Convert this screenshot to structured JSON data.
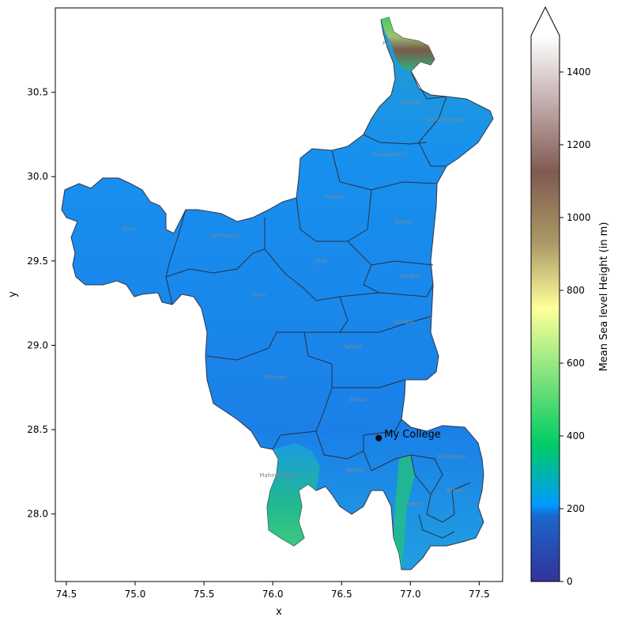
{
  "map": {
    "xlabel": "x",
    "ylabel": "y",
    "x_ticks": [
      "74.5",
      "75.0",
      "75.5",
      "76.0",
      "76.5",
      "77.0",
      "77.5"
    ],
    "y_ticks": [
      "28.0",
      "28.5",
      "29.0",
      "29.5",
      "30.0",
      "30.5"
    ],
    "xlim": [
      74.42,
      77.67
    ],
    "ylim": [
      27.6,
      31.0
    ],
    "marker": {
      "label": "My College",
      "lon": 76.77,
      "lat": 28.45,
      "color": "#000000"
    },
    "district_labels": [
      {
        "name": "Panchkula",
        "lon": 76.9,
        "lat": 30.78
      },
      {
        "name": "Ambala",
        "lon": 77.0,
        "lat": 30.43
      },
      {
        "name": "Yamunanagar",
        "lon": 77.25,
        "lat": 30.33
      },
      {
        "name": "Kurukshetra",
        "lon": 76.85,
        "lat": 30.12
      },
      {
        "name": "Kaithal",
        "lon": 76.45,
        "lat": 29.87
      },
      {
        "name": "Karnal",
        "lon": 76.95,
        "lat": 29.72
      },
      {
        "name": "Sirsa",
        "lon": 74.95,
        "lat": 29.68
      },
      {
        "name": "Fatehabad",
        "lon": 75.65,
        "lat": 29.64
      },
      {
        "name": "Jind",
        "lon": 76.35,
        "lat": 29.49
      },
      {
        "name": "Panipat",
        "lon": 77.0,
        "lat": 29.4
      },
      {
        "name": "Hisar",
        "lon": 75.9,
        "lat": 29.29
      },
      {
        "name": "Sonipat",
        "lon": 76.95,
        "lat": 29.13
      },
      {
        "name": "Rohtak",
        "lon": 76.58,
        "lat": 28.98
      },
      {
        "name": "Bhiwani",
        "lon": 76.02,
        "lat": 28.8
      },
      {
        "name": "Jhajjar",
        "lon": 76.62,
        "lat": 28.67
      },
      {
        "name": "Faridabad",
        "lon": 77.3,
        "lat": 28.33
      },
      {
        "name": "Rewari",
        "lon": 76.6,
        "lat": 28.25
      },
      {
        "name": "Mahendragarh",
        "lon": 76.05,
        "lat": 28.22
      },
      {
        "name": "Palwal",
        "lon": 77.32,
        "lat": 28.13
      },
      {
        "name": "Mewat",
        "lon": 77.02,
        "lat": 28.05
      }
    ]
  },
  "colorbar": {
    "label": "Mean Sea level Height (in m)",
    "ticks": [
      "0",
      "200",
      "400",
      "600",
      "800",
      "1000",
      "1200",
      "1400"
    ],
    "range": [
      0,
      1500
    ],
    "extend": "max",
    "colormap": [
      "#333399",
      "#1a66cc",
      "#0099ff",
      "#00cc66",
      "#66dd77",
      "#ffff99",
      "#aa9966",
      "#805a50",
      "#c0a8a8",
      "#ffffff"
    ]
  }
}
